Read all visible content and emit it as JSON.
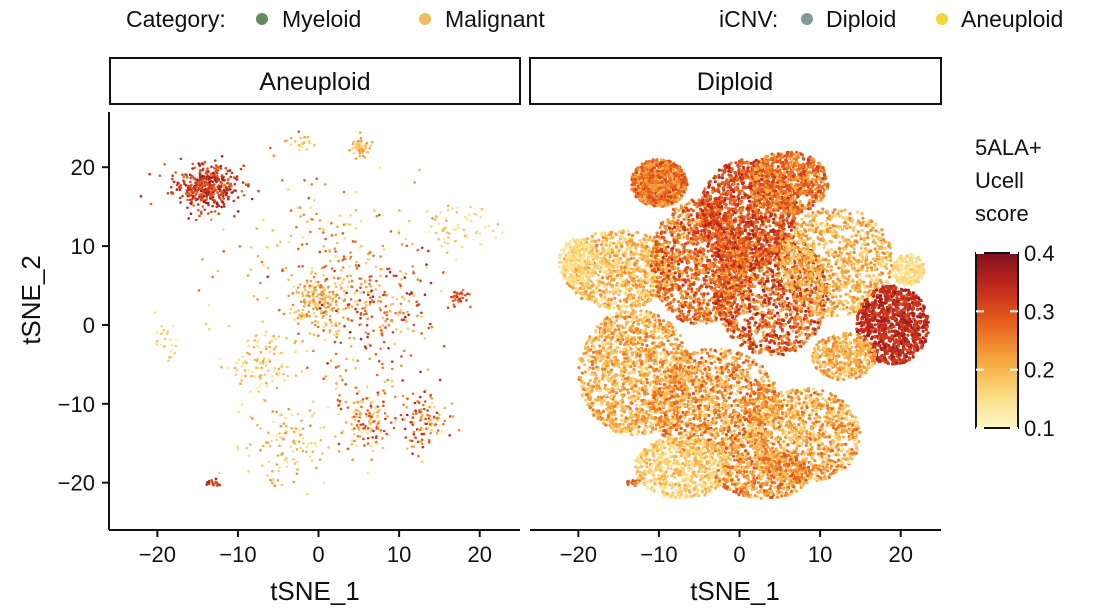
{
  "chart_data": {
    "type": "scatter",
    "xlabel": "tSNE_1",
    "ylabel": "tSNE_2",
    "xlim": [
      -26,
      25
    ],
    "ylim": [
      -26,
      27
    ],
    "xticks": [
      -20,
      -10,
      0,
      10,
      20
    ],
    "yticks": [
      -20,
      -10,
      0,
      10,
      20
    ],
    "tick_labels_x": [
      "−20",
      "−10",
      "0",
      "10",
      "20"
    ],
    "tick_labels_y": [
      "−20",
      "−10",
      "0",
      "10",
      "20"
    ],
    "grid": false,
    "facets": [
      "Aneuploid",
      "Diploid"
    ],
    "legend": {
      "position": "top",
      "category": {
        "title": "Category:",
        "items": [
          {
            "label": "Myeloid",
            "color": "#5e8f5a"
          },
          {
            "label": "Malignant",
            "color": "#f0bc62"
          }
        ]
      },
      "icnv": {
        "title": "iCNV:",
        "items": [
          {
            "label": "Diploid",
            "color": "#7f9996"
          },
          {
            "label": "Aneuploid",
            "color": "#f6d43a"
          }
        ]
      }
    },
    "colorbar": {
      "title": [
        "5ALA+",
        "Ucell",
        "score"
      ],
      "range": [
        0.1,
        0.4
      ],
      "ticks": [
        "0.4",
        "0.3",
        "0.2",
        "0.1"
      ],
      "tick_values": [
        0.4,
        0.3,
        0.2,
        0.1
      ],
      "colors": [
        "#fff8c9",
        "#fbd97d",
        "#f5a33a",
        "#e8601c",
        "#c42a1c",
        "#7f0f1f"
      ]
    },
    "clusters": {
      "Aneuploid": [
        {
          "cx": -14,
          "cy": 17.5,
          "rx": 4,
          "ry": 2.8,
          "n": 420,
          "score": [
            0.27,
            0.38
          ]
        },
        {
          "cx": 5,
          "cy": 22.5,
          "rx": 1.3,
          "ry": 1.2,
          "n": 60,
          "score": [
            0.15,
            0.24
          ]
        },
        {
          "cx": 0,
          "cy": 3,
          "rx": 3.5,
          "ry": 3,
          "n": 160,
          "score": [
            0.16,
            0.26
          ]
        },
        {
          "cx": 7,
          "cy": 2,
          "rx": 8,
          "ry": 9,
          "n": 260,
          "score": [
            0.16,
            0.36
          ]
        },
        {
          "cx": 1,
          "cy": 8,
          "rx": 12,
          "ry": 12,
          "n": 200,
          "score": [
            0.14,
            0.3
          ]
        },
        {
          "cx": -7,
          "cy": -5,
          "rx": 5,
          "ry": 4,
          "n": 110,
          "score": [
            0.12,
            0.22
          ]
        },
        {
          "cx": -4,
          "cy": -15,
          "rx": 5,
          "ry": 5,
          "n": 110,
          "score": [
            0.13,
            0.25
          ]
        },
        {
          "cx": 6,
          "cy": -12,
          "rx": 4,
          "ry": 4,
          "n": 150,
          "score": [
            0.13,
            0.34
          ]
        },
        {
          "cx": 13,
          "cy": -12,
          "rx": 3,
          "ry": 4,
          "n": 110,
          "score": [
            0.14,
            0.36
          ]
        },
        {
          "cx": 17.5,
          "cy": 3.5,
          "rx": 1.5,
          "ry": 1,
          "n": 30,
          "score": [
            0.25,
            0.35
          ]
        },
        {
          "cx": -13,
          "cy": -20,
          "rx": 1.2,
          "ry": 0.4,
          "n": 18,
          "score": [
            0.28,
            0.36
          ]
        },
        {
          "cx": 17,
          "cy": 12,
          "rx": 4,
          "ry": 3,
          "n": 60,
          "score": [
            0.12,
            0.2
          ]
        },
        {
          "cx": -19,
          "cy": -2,
          "rx": 1.3,
          "ry": 2,
          "n": 25,
          "score": [
            0.12,
            0.2
          ]
        },
        {
          "cx": -2,
          "cy": 23,
          "rx": 2,
          "ry": 1,
          "n": 20,
          "score": [
            0.15,
            0.22
          ]
        }
      ],
      "Diploid": [
        {
          "cx": -10,
          "cy": 18,
          "rx": 3.5,
          "ry": 3,
          "n": 900,
          "score": [
            0.2,
            0.32
          ]
        },
        {
          "cx": -15,
          "cy": 7,
          "rx": 7,
          "ry": 5,
          "n": 1000,
          "score": [
            0.13,
            0.25
          ]
        },
        {
          "cx": -13,
          "cy": -6,
          "rx": 7,
          "ry": 8,
          "n": 1300,
          "score": [
            0.15,
            0.27
          ]
        },
        {
          "cx": -5,
          "cy": 8,
          "rx": 6,
          "ry": 8,
          "n": 1200,
          "score": [
            0.2,
            0.34
          ]
        },
        {
          "cx": 1,
          "cy": 14,
          "rx": 6,
          "ry": 7,
          "n": 1200,
          "score": [
            0.24,
            0.36
          ]
        },
        {
          "cx": 6,
          "cy": 18,
          "rx": 5,
          "ry": 4,
          "n": 700,
          "score": [
            0.2,
            0.33
          ]
        },
        {
          "cx": 4,
          "cy": 4,
          "rx": 7,
          "ry": 8,
          "n": 1400,
          "score": [
            0.2,
            0.36
          ]
        },
        {
          "cx": 12,
          "cy": 8,
          "rx": 7,
          "ry": 7,
          "n": 900,
          "score": [
            0.15,
            0.25
          ]
        },
        {
          "cx": 19,
          "cy": 0,
          "rx": 4.5,
          "ry": 5,
          "n": 900,
          "score": [
            0.3,
            0.38
          ]
        },
        {
          "cx": 13,
          "cy": -4,
          "rx": 4,
          "ry": 3,
          "n": 400,
          "score": [
            0.16,
            0.26
          ]
        },
        {
          "cx": -3,
          "cy": -10,
          "rx": 8,
          "ry": 7,
          "n": 1300,
          "score": [
            0.15,
            0.3
          ]
        },
        {
          "cx": 8,
          "cy": -14,
          "rx": 7,
          "ry": 6,
          "n": 1000,
          "score": [
            0.14,
            0.28
          ]
        },
        {
          "cx": -7,
          "cy": -18,
          "rx": 6,
          "ry": 4,
          "n": 600,
          "score": [
            0.13,
            0.22
          ]
        },
        {
          "cx": 3,
          "cy": -19,
          "rx": 6,
          "ry": 3,
          "n": 500,
          "score": [
            0.17,
            0.3
          ]
        },
        {
          "cx": -20,
          "cy": 8,
          "rx": 2.5,
          "ry": 3,
          "n": 200,
          "score": [
            0.12,
            0.18
          ]
        },
        {
          "cx": 21,
          "cy": 7,
          "rx": 2,
          "ry": 2,
          "n": 200,
          "score": [
            0.12,
            0.18
          ]
        },
        {
          "cx": -13,
          "cy": -20,
          "rx": 1,
          "ry": 0.4,
          "n": 20,
          "score": [
            0.2,
            0.3
          ]
        }
      ]
    }
  }
}
